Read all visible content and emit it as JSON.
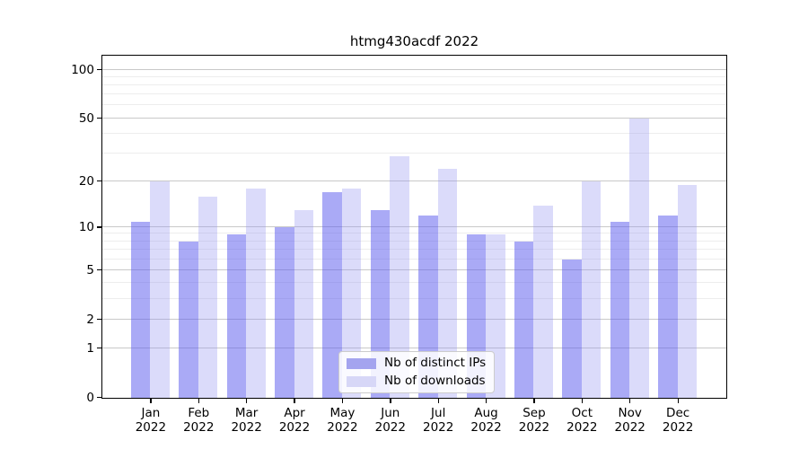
{
  "chart_data": {
    "type": "bar",
    "title": "htmg430acdf 2022",
    "categories": [
      "Jan",
      "Feb",
      "Mar",
      "Apr",
      "May",
      "Jun",
      "Jul",
      "Aug",
      "Sep",
      "Oct",
      "Nov",
      "Dec"
    ],
    "category_year": "2022",
    "series": [
      {
        "name": "Nb of distinct IPs",
        "color": "#a4a4ef",
        "bar_color": "rgba(92,92,238,0.52)",
        "values": [
          11,
          8,
          9,
          10,
          17,
          13,
          12,
          9,
          8,
          6,
          11,
          12
        ]
      },
      {
        "name": "Nb of downloads",
        "color": "#d7d7f7",
        "bar_color": "rgba(150,150,240,0.34)",
        "values": [
          20,
          16,
          18,
          13,
          18,
          29,
          24,
          9,
          14,
          20,
          50,
          19
        ]
      }
    ],
    "y_axis": {
      "scale": "log1p",
      "major_ticks": [
        0,
        1,
        2,
        5,
        10,
        20,
        50,
        100
      ],
      "minor_gridlines": [
        3,
        4,
        6,
        7,
        8,
        9,
        30,
        40,
        60,
        70,
        80,
        90
      ],
      "ylim": [
        0,
        126
      ]
    },
    "grid": true,
    "legend_position": "lower center"
  }
}
